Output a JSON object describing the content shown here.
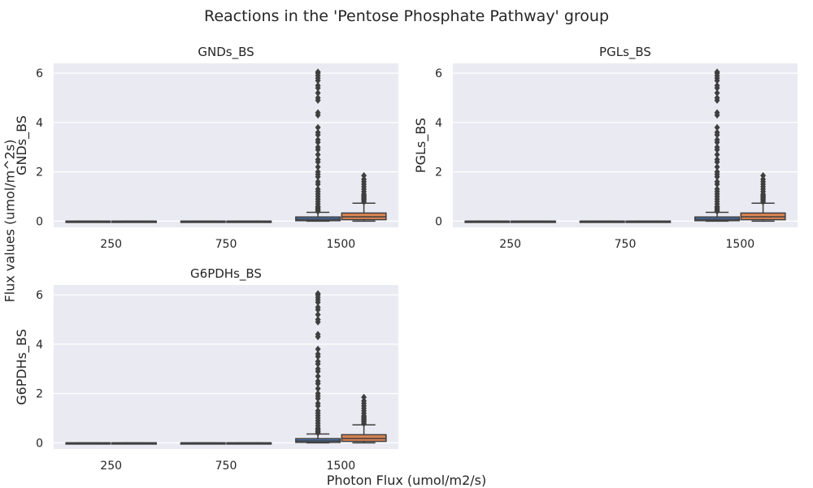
{
  "figure": {
    "title": "Reactions in the 'Pentose Phosphate Pathway' group",
    "xlabel": "Photon Flux (umol/m2/s)",
    "ylabel": "Flux values (umol/m^2s)"
  },
  "colors": {
    "panel_bg": "#eaeaf2",
    "grid": "#ffffff",
    "box_blue": "#4c72b0",
    "box_orange": "#dd8452",
    "line": "#3f3f3f"
  },
  "chart_data": [
    {
      "type": "box",
      "title": "GNDs_BS",
      "ylabel": "GNDs_BS",
      "categories": [
        "250",
        "750",
        "1500"
      ],
      "yticks": [
        "0",
        "2",
        "4",
        "6"
      ],
      "ylim": [
        -0.25,
        6.4
      ],
      "grid": true,
      "boxes": [
        {
          "category": "250",
          "series_index": 0,
          "q1": 0,
          "median": 0,
          "q3": 0,
          "whisker_low": 0,
          "whisker_high": 0,
          "outliers": []
        },
        {
          "category": "250",
          "series_index": 1,
          "q1": 0,
          "median": 0,
          "q3": 0,
          "whisker_low": 0,
          "whisker_high": 0,
          "outliers": []
        },
        {
          "category": "750",
          "series_index": 0,
          "q1": 0,
          "median": 0,
          "q3": 0,
          "whisker_low": 0,
          "whisker_high": 0,
          "outliers": []
        },
        {
          "category": "750",
          "series_index": 1,
          "q1": 0,
          "median": 0,
          "q3": 0,
          "whisker_low": 0,
          "whisker_high": 0,
          "outliers": []
        },
        {
          "category": "1500",
          "series_index": 0,
          "q1": 0.02,
          "median": 0.08,
          "q3": 0.17,
          "whisker_low": 0,
          "whisker_high": 0.36,
          "outliers": [
            0.4,
            0.45,
            0.5,
            0.55,
            0.6,
            0.7,
            0.8,
            0.9,
            1.0,
            1.1,
            1.2,
            1.3,
            1.5,
            1.6,
            1.8,
            1.9,
            2.0,
            2.2,
            2.4,
            2.5,
            2.7,
            2.9,
            3.0,
            3.2,
            3.3,
            3.5,
            3.6,
            3.8,
            4.3,
            4.4,
            4.9,
            5.0,
            5.2,
            5.4,
            5.5,
            5.7,
            5.8,
            5.9,
            6.0,
            6.05
          ]
        },
        {
          "category": "1500",
          "series_index": 1,
          "q1": 0.06,
          "median": 0.18,
          "q3": 0.33,
          "whisker_low": 0,
          "whisker_high": 0.73,
          "outliers": [
            0.78,
            0.85,
            0.9,
            0.95,
            1.0,
            1.05,
            1.1,
            1.2,
            1.3,
            1.4,
            1.5,
            1.6,
            1.7,
            1.85
          ]
        }
      ]
    },
    {
      "type": "box",
      "title": "PGLs_BS",
      "ylabel": "PGLs_BS",
      "categories": [
        "250",
        "750",
        "1500"
      ],
      "yticks": [
        "0",
        "2",
        "4",
        "6"
      ],
      "ylim": [
        -0.25,
        6.4
      ],
      "grid": true,
      "boxes": [
        {
          "category": "250",
          "series_index": 0,
          "q1": 0,
          "median": 0,
          "q3": 0,
          "whisker_low": 0,
          "whisker_high": 0,
          "outliers": []
        },
        {
          "category": "250",
          "series_index": 1,
          "q1": 0,
          "median": 0,
          "q3": 0,
          "whisker_low": 0,
          "whisker_high": 0,
          "outliers": []
        },
        {
          "category": "750",
          "series_index": 0,
          "q1": 0,
          "median": 0,
          "q3": 0,
          "whisker_low": 0,
          "whisker_high": 0,
          "outliers": []
        },
        {
          "category": "750",
          "series_index": 1,
          "q1": 0,
          "median": 0,
          "q3": 0,
          "whisker_low": 0,
          "whisker_high": 0,
          "outliers": []
        },
        {
          "category": "1500",
          "series_index": 0,
          "q1": 0.02,
          "median": 0.08,
          "q3": 0.17,
          "whisker_low": 0,
          "whisker_high": 0.36,
          "outliers": [
            0.4,
            0.45,
            0.5,
            0.55,
            0.6,
            0.7,
            0.8,
            0.9,
            1.0,
            1.1,
            1.2,
            1.3,
            1.5,
            1.6,
            1.8,
            1.9,
            2.0,
            2.2,
            2.4,
            2.5,
            2.7,
            2.9,
            3.0,
            3.2,
            3.3,
            3.5,
            3.6,
            3.8,
            4.3,
            4.4,
            4.9,
            5.0,
            5.2,
            5.4,
            5.5,
            5.7,
            5.8,
            5.9,
            6.0,
            6.05
          ]
        },
        {
          "category": "1500",
          "series_index": 1,
          "q1": 0.06,
          "median": 0.18,
          "q3": 0.33,
          "whisker_low": 0,
          "whisker_high": 0.73,
          "outliers": [
            0.78,
            0.85,
            0.9,
            0.95,
            1.0,
            1.05,
            1.1,
            1.2,
            1.3,
            1.4,
            1.5,
            1.6,
            1.7,
            1.85
          ]
        }
      ]
    },
    {
      "type": "box",
      "title": "G6PDHs_BS",
      "ylabel": "G6PDHs_BS",
      "categories": [
        "250",
        "750",
        "1500"
      ],
      "yticks": [
        "0",
        "2",
        "4",
        "6"
      ],
      "ylim": [
        -0.25,
        6.4
      ],
      "grid": true,
      "boxes": [
        {
          "category": "250",
          "series_index": 0,
          "q1": 0,
          "median": 0,
          "q3": 0,
          "whisker_low": 0,
          "whisker_high": 0,
          "outliers": []
        },
        {
          "category": "250",
          "series_index": 1,
          "q1": 0,
          "median": 0,
          "q3": 0,
          "whisker_low": 0,
          "whisker_high": 0,
          "outliers": []
        },
        {
          "category": "750",
          "series_index": 0,
          "q1": 0,
          "median": 0,
          "q3": 0,
          "whisker_low": 0,
          "whisker_high": 0,
          "outliers": []
        },
        {
          "category": "750",
          "series_index": 1,
          "q1": 0,
          "median": 0,
          "q3": 0,
          "whisker_low": 0,
          "whisker_high": 0,
          "outliers": []
        },
        {
          "category": "1500",
          "series_index": 0,
          "q1": 0.02,
          "median": 0.08,
          "q3": 0.17,
          "whisker_low": 0,
          "whisker_high": 0.36,
          "outliers": [
            0.4,
            0.45,
            0.5,
            0.55,
            0.6,
            0.7,
            0.8,
            0.9,
            1.0,
            1.1,
            1.2,
            1.3,
            1.5,
            1.6,
            1.8,
            1.9,
            2.0,
            2.2,
            2.4,
            2.5,
            2.7,
            2.9,
            3.0,
            3.2,
            3.3,
            3.5,
            3.6,
            3.8,
            4.3,
            4.4,
            4.9,
            5.0,
            5.2,
            5.4,
            5.5,
            5.7,
            5.8,
            5.9,
            6.0,
            6.05
          ]
        },
        {
          "category": "1500",
          "series_index": 1,
          "q1": 0.06,
          "median": 0.18,
          "q3": 0.33,
          "whisker_low": 0,
          "whisker_high": 0.73,
          "outliers": [
            0.78,
            0.85,
            0.9,
            0.95,
            1.0,
            1.05,
            1.1,
            1.2,
            1.3,
            1.4,
            1.5,
            1.6,
            1.7,
            1.85
          ]
        }
      ]
    }
  ]
}
